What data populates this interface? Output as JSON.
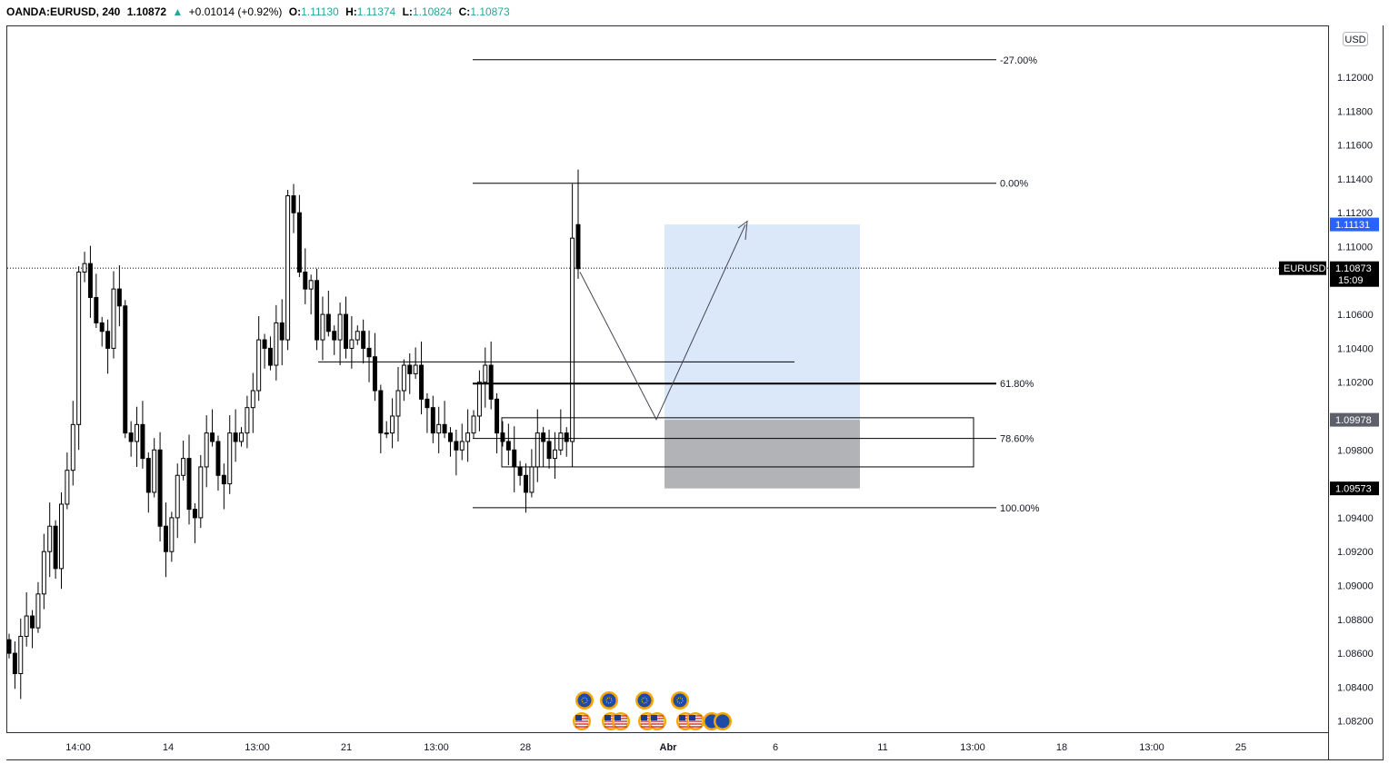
{
  "header": {
    "symbol": "OANDA:EURUSD, 240",
    "last": "1.10872",
    "arrow": "▲",
    "change": "+0.01014 (+0.92%)",
    "o_label": "O:",
    "o_value": "1.11130",
    "h_label": "H:",
    "h_value": "1.11374",
    "l_label": "L:",
    "l_value": "1.10824",
    "c_label": "C:",
    "c_value": "1.10873"
  },
  "price_axis": {
    "currency_badge": "USD",
    "ticks": [
      "1.12000",
      "1.11800",
      "1.11600",
      "1.11400",
      "1.11200",
      "1.11000",
      "1.10600",
      "1.10400",
      "1.10200",
      "1.09800",
      "1.09400",
      "1.09200",
      "1.09000",
      "1.08800",
      "1.08600",
      "1.08400",
      "1.08200"
    ],
    "tags": [
      {
        "name": "price-tag-1-11131",
        "text": "1.11131",
        "price": 1.11131,
        "bg": "#2962ff",
        "fg": "#ffffff"
      },
      {
        "name": "price-tag-eurusd",
        "text": "1.10873",
        "sub": "15:09",
        "price": 1.10873,
        "bg": "#000000",
        "fg": "#ffffff"
      },
      {
        "name": "price-tag-1-09978",
        "text": "1.09978",
        "price": 1.09978,
        "bg": "#5d606b",
        "fg": "#ffffff"
      },
      {
        "name": "price-tag-1-09573",
        "text": "1.09573",
        "price": 1.09573,
        "bg": "#000000",
        "fg": "#ffffff"
      }
    ],
    "symbol_tag": "EURUSD"
  },
  "time_axis": {
    "labels": [
      "14:00",
      "14",
      "13:00",
      "21",
      "13:00",
      "28",
      "Abr",
      "6",
      "11",
      "13:00",
      "18",
      "13:00",
      "25"
    ]
  },
  "fib_levels": [
    {
      "label": "-27.00%",
      "price": 1.12103
    },
    {
      "label": "0.00%",
      "price": 1.11374
    },
    {
      "label": "61.80%",
      "price": 1.10192
    },
    {
      "label": "78.60%",
      "price": 1.09868
    },
    {
      "label": "100.00%",
      "price": 1.09459
    }
  ],
  "colors": {
    "bull_body": "#ffffff",
    "bear_body": "#000000",
    "wick": "#000000",
    "target_zone": "#dbe8fa",
    "stop_zone": "#b2b3b7",
    "last_price_line": "#000000"
  },
  "chart_data": {
    "type": "candlestick",
    "symbol": "EURUSD",
    "timeframe": "240",
    "ylim": [
      1.081,
      1.122
    ],
    "last_price": 1.10873,
    "candles_close": [
      1.086,
      1.0848,
      1.087,
      1.0882,
      1.0875,
      1.0895,
      1.092,
      1.0935,
      1.091,
      1.0948,
      1.0968,
      1.0995,
      1.1085,
      1.109,
      1.107,
      1.1055,
      1.105,
      1.104,
      1.1075,
      1.1065,
      1.099,
      1.0985,
      1.0995,
      1.0975,
      1.0955,
      1.098,
      1.0935,
      1.092,
      1.094,
      1.0965,
      1.0975,
      1.0945,
      1.094,
      1.097,
      1.099,
      1.0985,
      1.0965,
      1.096,
      1.099,
      1.0985,
      1.099,
      1.1005,
      1.1015,
      1.1045,
      1.104,
      1.103,
      1.1055,
      1.1045,
      1.113,
      1.112,
      1.1085,
      1.1075,
      1.108,
      1.1045,
      1.106,
      1.105,
      1.1045,
      1.106,
      1.104,
      1.1045,
      1.105,
      1.104,
      1.1035,
      1.1015,
      1.099,
      1.099,
      1.1,
      1.1015,
      1.103,
      1.1025,
      1.103,
      1.101,
      1.1005,
      1.099,
      1.0995,
      1.099,
      1.0985,
      1.098,
      1.0985,
      1.099,
      1.1,
      1.102,
      1.103,
      1.101,
      1.099,
      1.0985,
      1.098,
      1.097,
      1.0965,
      1.0955,
      1.097,
      1.099,
      1.0985,
      1.0975,
      1.098,
      1.099,
      1.0985,
      1.1105,
      1.1087
    ],
    "levels": {
      "entry": 1.09978,
      "target": 1.11131,
      "stop": 1.09573
    }
  }
}
